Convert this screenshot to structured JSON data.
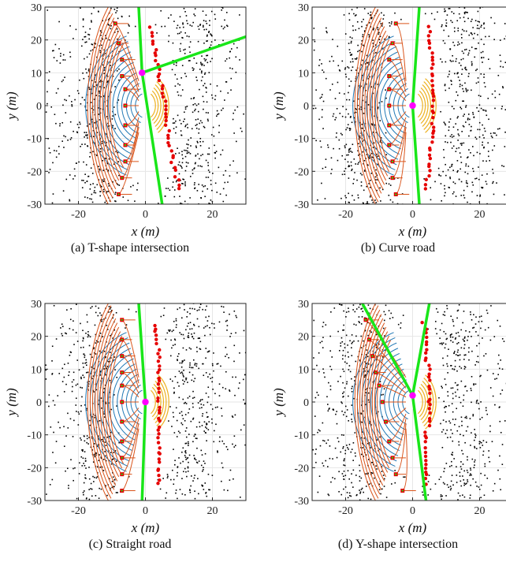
{
  "chart_data": [
    {
      "type": "scatter",
      "caption": "(a) T-shape intersection",
      "xlabel": "x (m)",
      "ylabel": "y (m)",
      "xlim": [
        -30,
        30
      ],
      "ylim": [
        -30,
        30
      ],
      "xticks": [
        "-20",
        "0",
        "20"
      ],
      "yticks": [
        "30",
        "20",
        "10",
        "0",
        "-10",
        "-20",
        "-30"
      ],
      "grid": true,
      "green_lines": [
        [
          [
            -2,
            30
          ],
          [
            -1,
            10
          ],
          [
            5,
            -30
          ]
        ],
        [
          [
            -1,
            10
          ],
          [
            30,
            21
          ]
        ]
      ],
      "magenta_point": [
        -1,
        10
      ],
      "points_y": [
        25,
        19,
        14,
        9,
        5,
        0,
        -6,
        -12,
        -17,
        -22,
        -27
      ],
      "left_x": [
        -9,
        -8,
        -7,
        -7,
        -6,
        -6,
        -6,
        -6,
        -6,
        -7,
        -8
      ],
      "right_x": [
        1,
        2,
        3,
        4,
        5,
        6,
        6,
        7,
        8,
        9,
        10
      ]
    },
    {
      "type": "scatter",
      "caption": "(b) Curve road",
      "xlabel": "x (m)",
      "ylabel": "y (m)",
      "xlim": [
        -30,
        30
      ],
      "ylim": [
        -30,
        30
      ],
      "xticks": [
        "-20",
        "0",
        "20"
      ],
      "yticks": [
        "30",
        "20",
        "10",
        "0",
        "-10",
        "-20",
        "-30"
      ],
      "grid": true,
      "green_lines": [
        [
          [
            2,
            30
          ],
          [
            0,
            0
          ],
          [
            2,
            -30
          ]
        ]
      ],
      "magenta_point": [
        0,
        0
      ],
      "points_y": [
        25,
        19,
        14,
        9,
        5,
        0,
        -6,
        -12,
        -17,
        -22,
        -27
      ],
      "left_x": [
        -5,
        -6,
        -7,
        -7,
        -7,
        -7,
        -7,
        -7,
        -6,
        -6,
        -5
      ],
      "right_x": [
        5,
        5,
        6,
        6,
        6,
        6,
        6,
        6,
        5,
        5,
        4
      ]
    },
    {
      "type": "scatter",
      "caption": "(c) Straight road",
      "xlabel": "x (m)",
      "ylabel": "y (m)",
      "xlim": [
        -30,
        30
      ],
      "ylim": [
        -30,
        30
      ],
      "xticks": [
        "-20",
        "0",
        "20"
      ],
      "yticks": [
        "30",
        "20",
        "10",
        "0",
        "-10",
        "-20",
        "-30"
      ],
      "grid": true,
      "green_lines": [
        [
          [
            -2,
            30
          ],
          [
            0,
            0
          ],
          [
            -1,
            -30
          ]
        ]
      ],
      "magenta_point": [
        0,
        0
      ],
      "points_y": [
        25,
        19,
        14,
        9,
        5,
        0,
        -6,
        -12,
        -17,
        -22,
        -27
      ],
      "left_x": [
        -7,
        -7,
        -7,
        -7,
        -7,
        -7,
        -7,
        -7,
        -7,
        -7,
        -7
      ],
      "right_x": [
        3,
        3,
        4,
        4,
        4,
        4,
        4,
        4,
        4,
        4,
        4
      ]
    },
    {
      "type": "scatter",
      "caption": "(d) Y-shape intersection",
      "xlabel": "x (m)",
      "ylabel": "y (m)",
      "xlim": [
        -30,
        30
      ],
      "ylim": [
        -30,
        30
      ],
      "xticks": [
        "-20",
        "0",
        "20"
      ],
      "yticks": [
        "30",
        "20",
        "10",
        "0",
        "-10",
        "-20",
        "-30"
      ],
      "grid": true,
      "green_lines": [
        [
          [
            -15,
            30
          ],
          [
            0,
            2
          ],
          [
            4,
            -30
          ]
        ],
        [
          [
            5,
            30
          ],
          [
            0,
            2
          ]
        ]
      ],
      "magenta_point": [
        0,
        2
      ],
      "points_y": [
        25,
        19,
        14,
        9,
        5,
        0,
        -6,
        -12,
        -17,
        -22,
        -27
      ],
      "left_x": [
        -14,
        -13,
        -12,
        -11,
        -10,
        -9,
        -8,
        -7,
        -6,
        -5,
        -3
      ],
      "right_x": [
        3,
        4,
        4,
        5,
        5,
        5,
        5,
        4,
        4,
        4,
        4
      ]
    }
  ],
  "colors": {
    "axis": "#262626",
    "grid": "#e6e6e6",
    "green": "#19e619",
    "magenta": "#ff00ff",
    "red": "#e60000",
    "blue": "#1f77b4",
    "orange": "#d95319",
    "yellow": "#edb120",
    "black": "#000000"
  }
}
